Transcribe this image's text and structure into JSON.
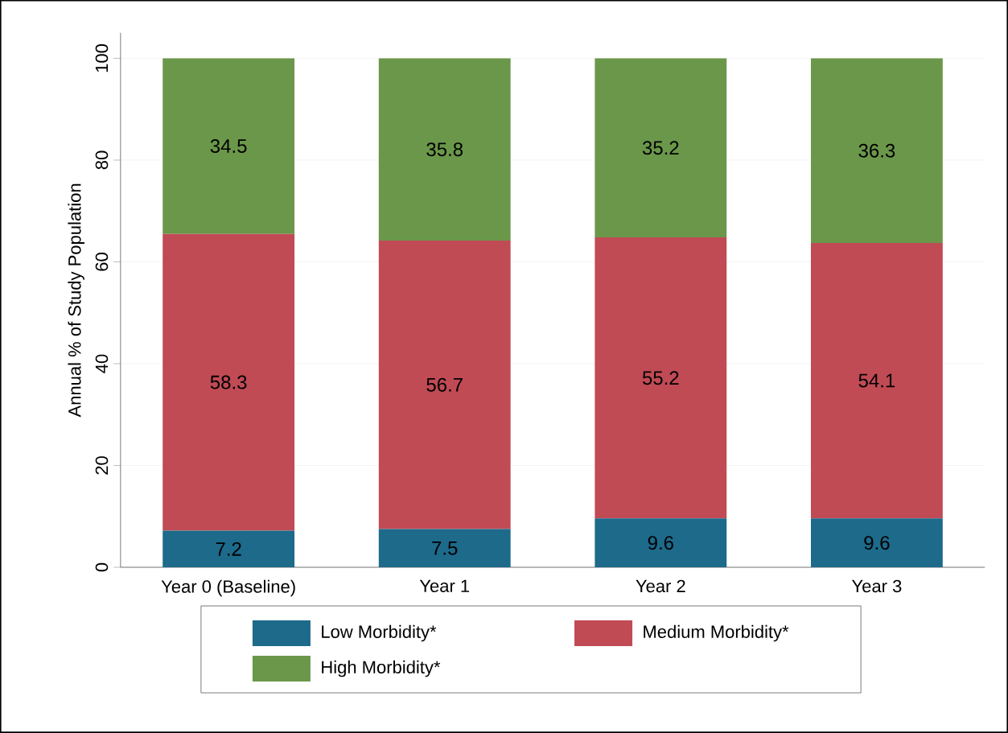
{
  "chart_data": {
    "type": "bar",
    "stacked": true,
    "ylabel": "Annual % of Study Population",
    "categories": [
      "Year 0 (Baseline)",
      "Year 1",
      "Year 2",
      "Year 3"
    ],
    "series": [
      {
        "name": "Low Morbidity*",
        "color": "#1d6a8b",
        "values": [
          7.2,
          7.5,
          9.6,
          9.6
        ]
      },
      {
        "name": "Medium Morbidity*",
        "color": "#c04b55",
        "values": [
          58.3,
          56.7,
          55.2,
          54.1
        ]
      },
      {
        "name": "High Morbidity*",
        "color": "#6b974a",
        "values": [
          34.5,
          35.8,
          35.2,
          36.3
        ]
      }
    ],
    "ylim": [
      0,
      105
    ],
    "yticks": [
      0,
      20,
      40,
      60,
      80,
      100
    ],
    "grid": "y",
    "legend": "bottom",
    "data_labels": true
  }
}
